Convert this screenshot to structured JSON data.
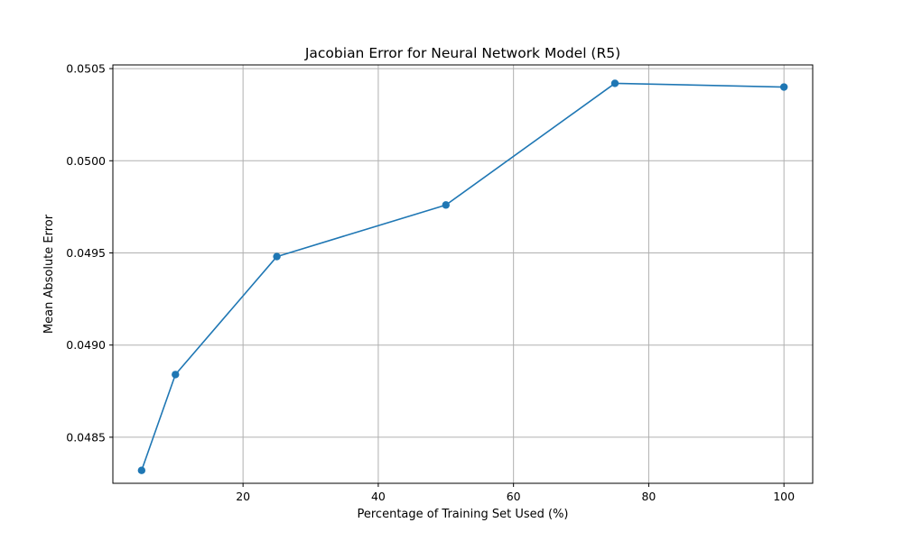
{
  "chart_data": {
    "type": "line",
    "title": "Jacobian Error for Neural Network Model (R5)",
    "xlabel": "Percentage of Training Set Used (%)",
    "ylabel": "Mean Absolute Error",
    "xlim": [
      0.75,
      104.25
    ],
    "ylim": [
      0.04825,
      0.05052
    ],
    "xticks": [
      20,
      40,
      60,
      80,
      100
    ],
    "xtick_labels": [
      "20",
      "40",
      "60",
      "80",
      "100"
    ],
    "yticks": [
      0.0485,
      0.049,
      0.0495,
      0.05,
      0.0505
    ],
    "ytick_labels": [
      "0.0485",
      "0.0490",
      "0.0495",
      "0.0500",
      "0.0505"
    ],
    "grid": true,
    "series": [
      {
        "x": [
          5,
          10,
          25,
          50,
          75,
          100
        ],
        "y": [
          0.04832,
          0.04884,
          0.04948,
          0.04976,
          0.05042,
          0.0504
        ],
        "color": "#1f77b4",
        "marker": "circle"
      }
    ]
  }
}
